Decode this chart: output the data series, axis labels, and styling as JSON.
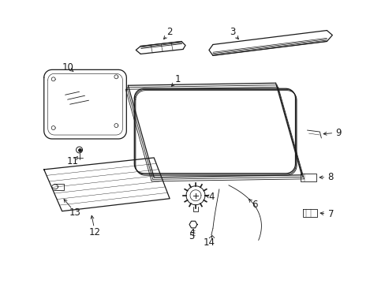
{
  "background_color": "#ffffff",
  "line_color": "#1a1a1a",
  "fig_width": 4.89,
  "fig_height": 3.6,
  "dpi": 100,
  "font_size": 8.5
}
